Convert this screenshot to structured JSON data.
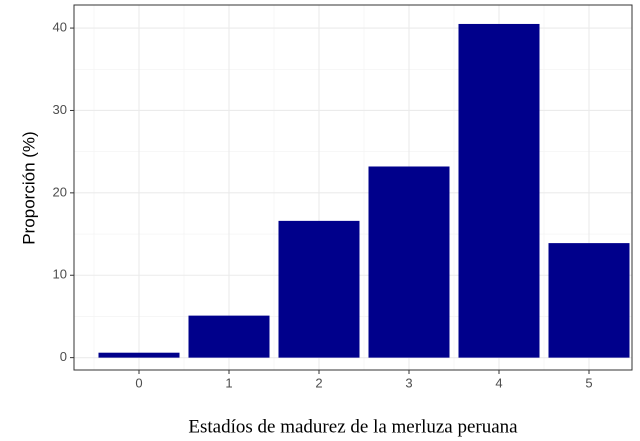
{
  "chart_data": {
    "type": "bar",
    "x_label": "Estadíos de madurez de la merluza peruana",
    "y_label": "Proporción (%)",
    "categories": [
      "0",
      "1",
      "2",
      "3",
      "4",
      "5"
    ],
    "values": [
      0.6,
      5.1,
      16.6,
      23.2,
      40.5,
      13.9
    ],
    "color": "#00008b",
    "ylim": [
      -1.5,
      42.8
    ],
    "yticks": [
      0,
      10,
      20,
      30,
      40
    ],
    "grid": true
  }
}
